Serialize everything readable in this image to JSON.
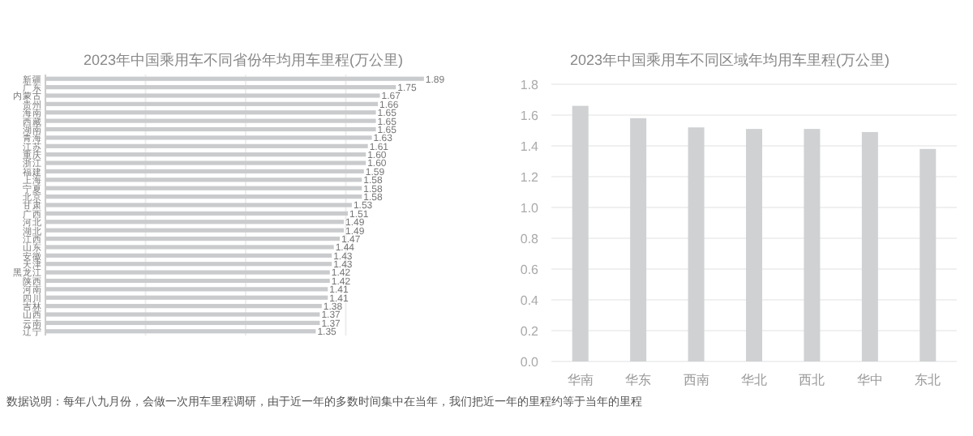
{
  "chart_data": [
    {
      "type": "bar",
      "orientation": "horizontal",
      "title": "2023年中国乘用车不同省份年均用车里程(万公里)",
      "categories": [
        "新疆",
        "广东",
        "内蒙古",
        "贵州",
        "海南",
        "西藏",
        "湖南",
        "青海",
        "江苏",
        "重庆",
        "浙江",
        "福建",
        "上海",
        "宁夏",
        "北京",
        "甘肃",
        "广西",
        "河北",
        "湖北",
        "江西",
        "山东",
        "安徽",
        "天津",
        "黑龙江",
        "陕西",
        "河南",
        "四川",
        "吉林",
        "山西",
        "云南",
        "辽宁"
      ],
      "values": [
        1.89,
        1.75,
        1.67,
        1.66,
        1.65,
        1.65,
        1.65,
        1.63,
        1.61,
        1.6,
        1.6,
        1.59,
        1.58,
        1.58,
        1.58,
        1.53,
        1.51,
        1.49,
        1.49,
        1.47,
        1.44,
        1.43,
        1.43,
        1.42,
        1.42,
        1.41,
        1.41,
        1.38,
        1.37,
        1.37,
        1.35
      ],
      "color": "#c9cbcd",
      "value_labels": [
        "1.89",
        "1.75",
        "1.67",
        "1.66",
        "1.65",
        "1.65",
        "1.65",
        "1.63",
        "1.61",
        "1.60",
        "1.60",
        "1.59",
        "1.58",
        "1.58",
        "1.58",
        "1.53",
        "1.51",
        "1.49",
        "1.49",
        "1.47",
        "1.44",
        "1.43",
        "1.43",
        "1.42",
        "1.42",
        "1.41",
        "1.41",
        "1.38",
        "1.37",
        "1.37",
        "1.35"
      ],
      "xticks": [
        {
          "value": 0.5,
          "label": null
        },
        {
          "value": 1,
          "label": null
        },
        {
          "value": 1.5,
          "label": null
        }
      ],
      "grid": "x",
      "tick_labels": "y",
      "annotations": [
        "数据说明：每年八九月份，会做一次用车里程调研，由于近一年的多数时间集中在当年，我们把近一年的里程约等于当年的里程"
      ]
    },
    {
      "type": "bar",
      "title": "2023年中国乘用车不同区域年均用车里程(万公里)",
      "categories": [
        "华南",
        "华东",
        "西南",
        "华北",
        "西北",
        "华中",
        "东北"
      ],
      "values": [
        1.66,
        1.58,
        1.52,
        1.51,
        1.51,
        1.49,
        1.38
      ],
      "color": "#cfd1d3",
      "ylim": [
        0,
        1.8
      ],
      "yticks": [
        {
          "value": 0,
          "label": "0.0"
        },
        {
          "value": 0.2,
          "label": "0.2"
        },
        {
          "value": 0.4,
          "label": "0.4"
        },
        {
          "value": 0.6,
          "label": "0.6"
        },
        {
          "value": 0.8,
          "label": "0.8"
        },
        {
          "value": 1,
          "label": "1.0"
        },
        {
          "value": 1.2,
          "label": "1.2"
        },
        {
          "value": 1.4,
          "label": "1.4"
        },
        {
          "value": 1.6,
          "label": "1.6"
        },
        {
          "value": 1.8,
          "label": "1.8"
        }
      ],
      "grid": "y"
    }
  ]
}
